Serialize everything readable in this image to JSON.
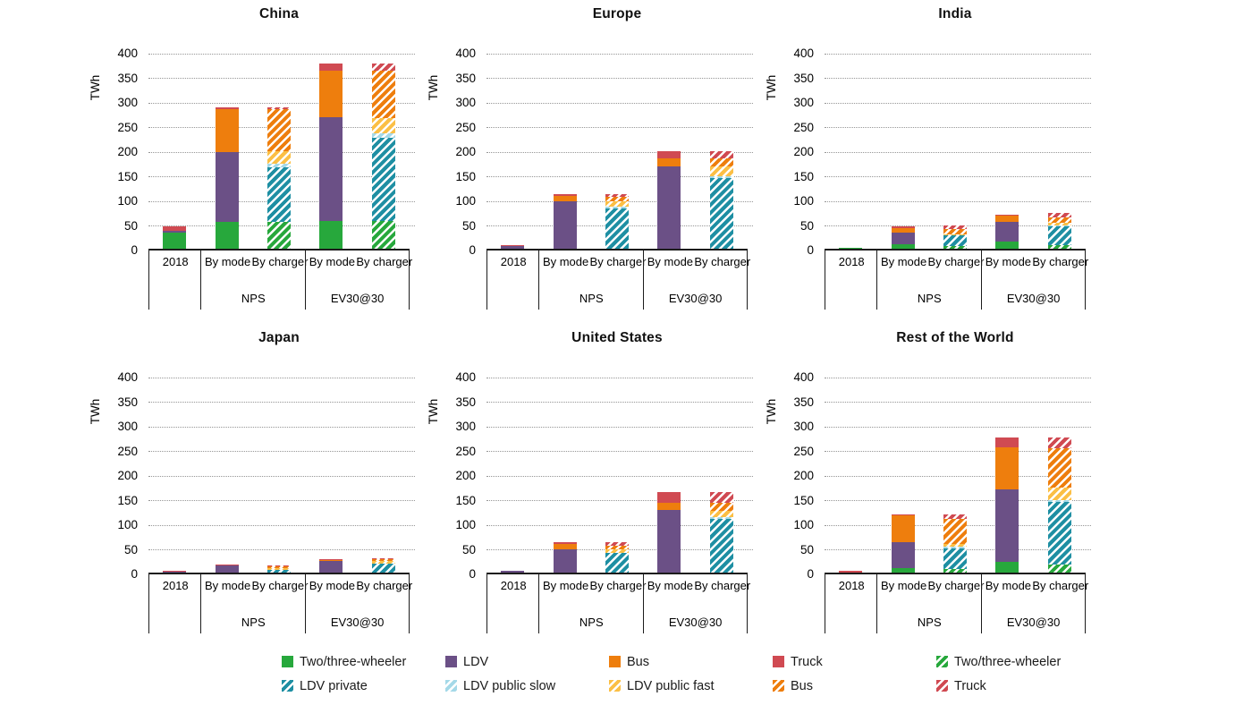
{
  "figure": {
    "background": "#ffffff"
  },
  "chart_data": {
    "type": "bar",
    "stacked": true,
    "unit": "TWh",
    "ylabel": "TWh",
    "ylim": [
      0,
      400
    ],
    "ytick_step": 50,
    "grid": "horizontal dotted lines every 50 TWh",
    "legend_position": "bottom",
    "x_structure": "groups: 2018 | NPS (By mode, By charger) | EV30@30 (By mode, By charger)",
    "series": {
      "two_three": {
        "label": "Two/three-wheeler",
        "color": "#27A83C",
        "hatched": false
      },
      "ldv": {
        "label": "LDV",
        "color": "#6B5086",
        "hatched": false
      },
      "bus": {
        "label": "Bus",
        "color": "#EE7E0D",
        "hatched": false
      },
      "truck": {
        "label": "Truck",
        "color": "#D04A52",
        "hatched": false
      },
      "two_three_h": {
        "label": "Two/three-wheeler",
        "color": "#27A83C",
        "hatched": true
      },
      "ldv_private": {
        "label": "LDV private",
        "color": "#1E8FA3",
        "hatched": true
      },
      "ldv_public_slow": {
        "label": "LDV public slow",
        "color": "#A5D9E8",
        "hatched": true
      },
      "ldv_public_fast": {
        "label": "LDV public fast",
        "color": "#FBBF45",
        "hatched": true
      },
      "bus_h": {
        "label": "Bus",
        "color": "#EE7E0D",
        "hatched": true
      },
      "truck_h": {
        "label": "Truck",
        "color": "#D04A52",
        "hatched": true
      }
    },
    "legend_rows": [
      [
        "two_three",
        "ldv",
        "bus",
        "truck",
        "two_three_h"
      ],
      [
        "ldv_private",
        "ldv_public_slow",
        "ldv_public_fast",
        "bus_h",
        "truck_h"
      ]
    ],
    "charts": [
      {
        "title": "China",
        "groups": [
          {
            "label": "",
            "bars": [
              {
                "label": "2018",
                "segments": [
                  [
                    "two_three",
                    32
                  ],
                  [
                    "ldv",
                    5
                  ],
                  [
                    "truck",
                    9
                  ]
                ]
              }
            ]
          },
          {
            "label": "NPS",
            "bars": [
              {
                "label": "By mode",
                "segments": [
                  [
                    "two_three",
                    55
                  ],
                  [
                    "ldv",
                    142
                  ],
                  [
                    "bus",
                    86
                  ],
                  [
                    "truck",
                    5
                  ]
                ]
              },
              {
                "label": "By charger",
                "segments": [
                  [
                    "two_three_h",
                    54
                  ],
                  [
                    "ldv_private",
                    112
                  ],
                  [
                    "ldv_public_slow",
                    6
                  ],
                  [
                    "ldv_public_fast",
                    27
                  ],
                  [
                    "bus_h",
                    84
                  ],
                  [
                    "truck_h",
                    5
                  ]
                ]
              }
            ]
          },
          {
            "label": "EV30@30",
            "bars": [
              {
                "label": "By mode",
                "segments": [
                  [
                    "two_three",
                    56
                  ],
                  [
                    "ldv",
                    211
                  ],
                  [
                    "bus",
                    95
                  ],
                  [
                    "truck",
                    15
                  ]
                ]
              },
              {
                "label": "By charger",
                "segments": [
                  [
                    "two_three_h",
                    57
                  ],
                  [
                    "ldv_private",
                    169
                  ],
                  [
                    "ldv_public_slow",
                    9
                  ],
                  [
                    "ldv_public_fast",
                    30
                  ],
                  [
                    "bus_h",
                    97
                  ],
                  [
                    "truck_h",
                    15
                  ]
                ]
              }
            ]
          }
        ]
      },
      {
        "title": "Europe",
        "groups": [
          {
            "label": "",
            "bars": [
              {
                "label": "2018",
                "segments": [
                  [
                    "ldv",
                    5
                  ],
                  [
                    "truck",
                    2
                  ]
                ]
              }
            ]
          },
          {
            "label": "NPS",
            "bars": [
              {
                "label": "By mode",
                "segments": [
                  [
                    "ldv",
                    96
                  ],
                  [
                    "bus",
                    11
                  ],
                  [
                    "truck",
                    4
                  ]
                ]
              },
              {
                "label": "By charger",
                "segments": [
                  [
                    "ldv_private",
                    82
                  ],
                  [
                    "ldv_public_slow",
                    3
                  ],
                  [
                    "ldv_public_fast",
                    12
                  ],
                  [
                    "bus_h",
                    9
                  ],
                  [
                    "truck_h",
                    5
                  ]
                ]
              }
            ]
          },
          {
            "label": "EV30@30",
            "bars": [
              {
                "label": "By mode",
                "segments": [
                  [
                    "ldv",
                    168
                  ],
                  [
                    "bus",
                    16
                  ],
                  [
                    "truck",
                    14
                  ]
                ]
              },
              {
                "label": "By charger",
                "segments": [
                  [
                    "ldv_private",
                    144
                  ],
                  [
                    "ldv_public_slow",
                    4
                  ],
                  [
                    "ldv_public_fast",
                    20
                  ],
                  [
                    "bus_h",
                    16
                  ],
                  [
                    "truck_h",
                    14
                  ]
                ]
              }
            ]
          }
        ]
      },
      {
        "title": "India",
        "groups": [
          {
            "label": "",
            "bars": [
              {
                "label": "2018",
                "segments": [
                  [
                    "two_three",
                    1
                  ]
                ]
              }
            ]
          },
          {
            "label": "NPS",
            "bars": [
              {
                "label": "By mode",
                "segments": [
                  [
                    "two_three",
                    10
                  ],
                  [
                    "ldv",
                    23
                  ],
                  [
                    "bus",
                    9
                  ],
                  [
                    "truck",
                    3
                  ]
                ]
              },
              {
                "label": "By charger",
                "segments": [
                  [
                    "two_three_h",
                    5
                  ],
                  [
                    "ldv_private",
                    22
                  ],
                  [
                    "ldv_public_fast",
                    2
                  ],
                  [
                    "bus_h",
                    11
                  ],
                  [
                    "truck_h",
                    7
                  ]
                ]
              }
            ]
          },
          {
            "label": "EV30@30",
            "bars": [
              {
                "label": "By mode",
                "segments": [
                  [
                    "two_three",
                    15
                  ],
                  [
                    "ldv",
                    40
                  ],
                  [
                    "bus",
                    13
                  ],
                  [
                    "truck",
                    2
                  ]
                ]
              },
              {
                "label": "By charger",
                "segments": [
                  [
                    "two_three_h",
                    8
                  ],
                  [
                    "ldv_private",
                    37
                  ],
                  [
                    "ldv_public_slow",
                    2
                  ],
                  [
                    "ldv_public_fast",
                    5
                  ],
                  [
                    "bus_h",
                    12
                  ],
                  [
                    "truck_h",
                    8
                  ]
                ]
              }
            ]
          }
        ]
      },
      {
        "title": "Japan",
        "groups": [
          {
            "label": "",
            "bars": [
              {
                "label": "2018",
                "segments": [
                  [
                    "ldv",
                    3
                  ],
                  [
                    "truck",
                    1
                  ]
                ]
              }
            ]
          },
          {
            "label": "NPS",
            "bars": [
              {
                "label": "By mode",
                "segments": [
                  [
                    "ldv",
                    15
                  ],
                  [
                    "truck",
                    2
                  ]
                ]
              },
              {
                "label": "By charger",
                "segments": [
                  [
                    "ldv_private",
                    6
                  ],
                  [
                    "ldv_public_fast",
                    3
                  ],
                  [
                    "bus_h",
                    3
                  ],
                  [
                    "truck_h",
                    3
                  ]
                ]
              }
            ]
          },
          {
            "label": "EV30@30",
            "bars": [
              {
                "label": "By mode",
                "segments": [
                  [
                    "ldv",
                    23
                  ],
                  [
                    "bus",
                    3
                  ],
                  [
                    "truck",
                    2
                  ]
                ]
              },
              {
                "label": "By charger",
                "segments": [
                  [
                    "ldv_private",
                    19
                  ],
                  [
                    "ldv_public_fast",
                    4
                  ],
                  [
                    "bus_h",
                    4
                  ],
                  [
                    "truck_h",
                    3
                  ]
                ]
              }
            ]
          }
        ]
      },
      {
        "title": "United States",
        "groups": [
          {
            "label": "",
            "bars": [
              {
                "label": "2018",
                "segments": [
                  [
                    "ldv",
                    3
                  ]
                ]
              }
            ]
          },
          {
            "label": "NPS",
            "bars": [
              {
                "label": "By mode",
                "segments": [
                  [
                    "ldv",
                    48
                  ],
                  [
                    "bus",
                    11
                  ],
                  [
                    "truck",
                    2
                  ]
                ]
              },
              {
                "label": "By charger",
                "segments": [
                  [
                    "ldv_private",
                    40
                  ],
                  [
                    "ldv_public_fast",
                    7
                  ],
                  [
                    "bus_h",
                    7
                  ],
                  [
                    "truck_h",
                    7
                  ]
                ]
              }
            ]
          },
          {
            "label": "EV30@30",
            "bars": [
              {
                "label": "By mode",
                "segments": [
                  [
                    "ldv",
                    128
                  ],
                  [
                    "bus",
                    14
                  ],
                  [
                    "truck",
                    21
                  ]
                ]
              },
              {
                "label": "By charger",
                "segments": [
                  [
                    "ldv_private",
                    110
                  ],
                  [
                    "ldv_public_slow",
                    3
                  ],
                  [
                    "ldv_public_fast",
                    12
                  ],
                  [
                    "bus_h",
                    17
                  ],
                  [
                    "truck_h",
                    21
                  ]
                ]
              }
            ]
          }
        ]
      },
      {
        "title": "Rest of the World",
        "groups": [
          {
            "label": "",
            "bars": [
              {
                "label": "2018",
                "segments": [
                  [
                    "truck",
                    3
                  ]
                ]
              }
            ]
          },
          {
            "label": "NPS",
            "bars": [
              {
                "label": "By mode",
                "segments": [
                  [
                    "two_three",
                    10
                  ],
                  [
                    "ldv",
                    51
                  ],
                  [
                    "bus",
                    56
                  ],
                  [
                    "truck",
                    1
                  ]
                ]
              },
              {
                "label": "By charger",
                "segments": [
                  [
                    "two_three_h",
                    8
                  ],
                  [
                    "ldv_private",
                    42
                  ],
                  [
                    "ldv_public_slow",
                    2
                  ],
                  [
                    "ldv_public_fast",
                    7
                  ],
                  [
                    "bus_h",
                    51
                  ],
                  [
                    "truck_h",
                    8
                  ]
                ]
              }
            ]
          },
          {
            "label": "EV30@30",
            "bars": [
              {
                "label": "By mode",
                "segments": [
                  [
                    "two_three",
                    22
                  ],
                  [
                    "ldv",
                    148
                  ],
                  [
                    "bus",
                    85
                  ],
                  [
                    "truck",
                    20
                  ]
                ]
              },
              {
                "label": "By charger",
                "segments": [
                  [
                    "two_three_h",
                    17
                  ],
                  [
                    "ldv_private",
                    127
                  ],
                  [
                    "ldv_public_slow",
                    3
                  ],
                  [
                    "ldv_public_fast",
                    25
                  ],
                  [
                    "bus_h",
                    81
                  ],
                  [
                    "truck_h",
                    22
                  ]
                ]
              }
            ]
          }
        ]
      }
    ]
  }
}
